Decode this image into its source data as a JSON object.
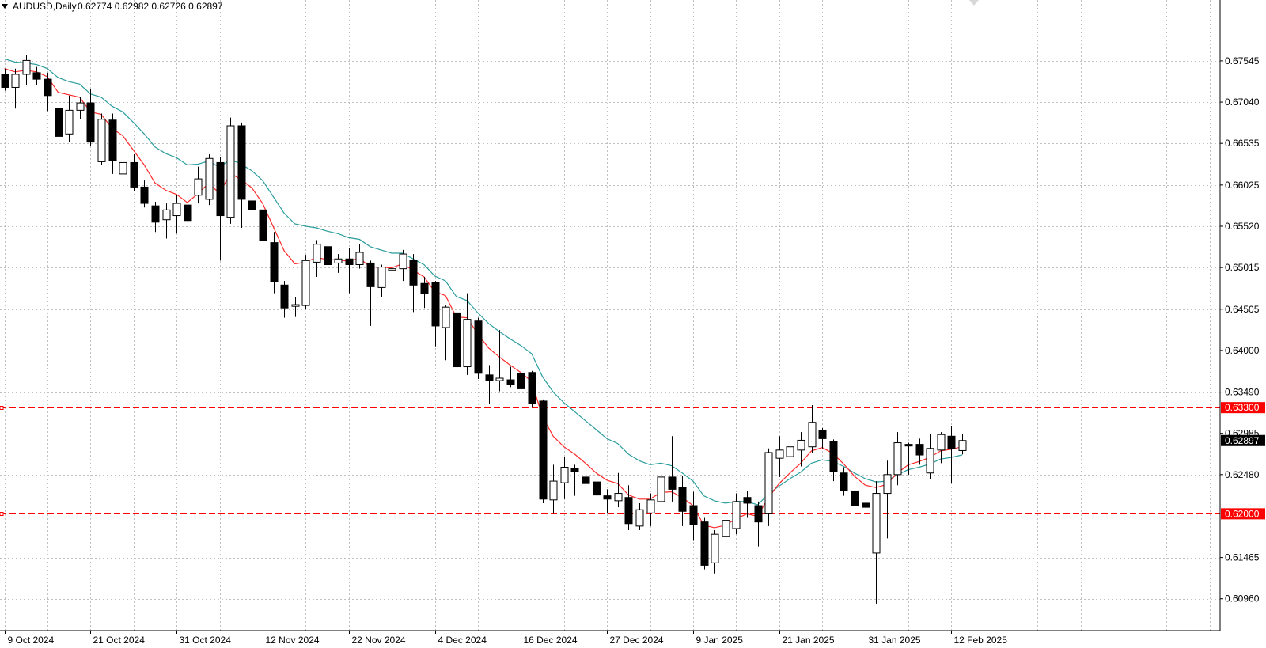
{
  "header": {
    "symbol_label": "AUDUSD,Daily",
    "ohlc": "0.62774 0.62982 0.62726 0.62897"
  },
  "chart_data": {
    "type": "candlestick",
    "symbol": "AUDUSD",
    "timeframe": "Daily",
    "ylim": [
      0.6057,
      0.6829
    ],
    "grid": true,
    "price_ticks": [
      "0.67545",
      "0.67040",
      "0.66535",
      "0.66025",
      "0.65520",
      "0.65015",
      "0.64505",
      "0.64000",
      "0.63490",
      "0.62985",
      "0.62480",
      "0.61465",
      "0.60960"
    ],
    "date_labels": [
      {
        "label": "9 Oct 2024",
        "index": 0
      },
      {
        "label": "21 Oct 2024",
        "index": 8
      },
      {
        "label": "31 Oct 2024",
        "index": 16
      },
      {
        "label": "12 Nov 2024",
        "index": 24
      },
      {
        "label": "22 Nov 2024",
        "index": 32
      },
      {
        "label": "4 Dec 2024",
        "index": 40
      },
      {
        "label": "16 Dec 2024",
        "index": 48
      },
      {
        "label": "27 Dec 2024",
        "index": 56
      },
      {
        "label": "9 Jan 2025",
        "index": 64
      },
      {
        "label": "21 Jan 2025",
        "index": 72
      },
      {
        "label": "31 Jan 2025",
        "index": 80
      },
      {
        "label": "12 Feb 2025",
        "index": 88
      }
    ],
    "horizontal_levels": [
      {
        "value": 0.633,
        "label": "0.63300",
        "color": "#ff0000"
      },
      {
        "value": 0.62,
        "label": "0.62000",
        "color": "#ff0000"
      }
    ],
    "current_price": {
      "value": 0.62897,
      "label": "0.62897"
    },
    "candles": [
      {
        "o": 0.6738,
        "h": 0.6745,
        "l": 0.6718,
        "c": 0.6722
      },
      {
        "o": 0.6722,
        "h": 0.6745,
        "l": 0.6696,
        "c": 0.6738
      },
      {
        "o": 0.6738,
        "h": 0.6762,
        "l": 0.6725,
        "c": 0.6755
      },
      {
        "o": 0.674,
        "h": 0.6747,
        "l": 0.6725,
        "c": 0.6732
      },
      {
        "o": 0.6732,
        "h": 0.674,
        "l": 0.6693,
        "c": 0.6712
      },
      {
        "o": 0.6696,
        "h": 0.6712,
        "l": 0.6654,
        "c": 0.6662
      },
      {
        "o": 0.6665,
        "h": 0.6712,
        "l": 0.6655,
        "c": 0.6694
      },
      {
        "o": 0.6694,
        "h": 0.671,
        "l": 0.6683,
        "c": 0.6703
      },
      {
        "o": 0.6703,
        "h": 0.672,
        "l": 0.665,
        "c": 0.6655
      },
      {
        "o": 0.6631,
        "h": 0.669,
        "l": 0.6627,
        "c": 0.6683
      },
      {
        "o": 0.6682,
        "h": 0.669,
        "l": 0.6616,
        "c": 0.6632
      },
      {
        "o": 0.6616,
        "h": 0.6655,
        "l": 0.6612,
        "c": 0.663
      },
      {
        "o": 0.663,
        "h": 0.664,
        "l": 0.6595,
        "c": 0.66
      },
      {
        "o": 0.66,
        "h": 0.6608,
        "l": 0.6575,
        "c": 0.658
      },
      {
        "o": 0.6577,
        "h": 0.6582,
        "l": 0.6545,
        "c": 0.6557
      },
      {
        "o": 0.656,
        "h": 0.658,
        "l": 0.6537,
        "c": 0.6572
      },
      {
        "o": 0.6565,
        "h": 0.659,
        "l": 0.6543,
        "c": 0.658
      },
      {
        "o": 0.6578,
        "h": 0.6585,
        "l": 0.6556,
        "c": 0.6559
      },
      {
        "o": 0.659,
        "h": 0.6625,
        "l": 0.658,
        "c": 0.661
      },
      {
        "o": 0.6585,
        "h": 0.664,
        "l": 0.6578,
        "c": 0.6635
      },
      {
        "o": 0.663,
        "h": 0.6637,
        "l": 0.651,
        "c": 0.6565
      },
      {
        "o": 0.6563,
        "h": 0.6685,
        "l": 0.6555,
        "c": 0.6675
      },
      {
        "o": 0.6675,
        "h": 0.6679,
        "l": 0.655,
        "c": 0.6585
      },
      {
        "o": 0.6583,
        "h": 0.6588,
        "l": 0.6555,
        "c": 0.6572
      },
      {
        "o": 0.6572,
        "h": 0.6575,
        "l": 0.6528,
        "c": 0.6535
      },
      {
        "o": 0.6532,
        "h": 0.6545,
        "l": 0.647,
        "c": 0.6484
      },
      {
        "o": 0.648,
        "h": 0.6485,
        "l": 0.644,
        "c": 0.6452
      },
      {
        "o": 0.6454,
        "h": 0.6465,
        "l": 0.6441,
        "c": 0.6456
      },
      {
        "o": 0.6455,
        "h": 0.6517,
        "l": 0.645,
        "c": 0.651
      },
      {
        "o": 0.6508,
        "h": 0.6535,
        "l": 0.649,
        "c": 0.653
      },
      {
        "o": 0.6527,
        "h": 0.6542,
        "l": 0.649,
        "c": 0.6505
      },
      {
        "o": 0.6507,
        "h": 0.6518,
        "l": 0.6495,
        "c": 0.6512
      },
      {
        "o": 0.6512,
        "h": 0.6525,
        "l": 0.647,
        "c": 0.6505
      },
      {
        "o": 0.6505,
        "h": 0.653,
        "l": 0.65,
        "c": 0.652
      },
      {
        "o": 0.6507,
        "h": 0.651,
        "l": 0.643,
        "c": 0.6478
      },
      {
        "o": 0.6477,
        "h": 0.6505,
        "l": 0.6465,
        "c": 0.6502
      },
      {
        "o": 0.6498,
        "h": 0.6507,
        "l": 0.648,
        "c": 0.65
      },
      {
        "o": 0.65,
        "h": 0.6523,
        "l": 0.6485,
        "c": 0.6518
      },
      {
        "o": 0.651,
        "h": 0.6518,
        "l": 0.6447,
        "c": 0.648
      },
      {
        "o": 0.6482,
        "h": 0.649,
        "l": 0.6452,
        "c": 0.647
      },
      {
        "o": 0.6483,
        "h": 0.6485,
        "l": 0.6405,
        "c": 0.643
      },
      {
        "o": 0.6428,
        "h": 0.6455,
        "l": 0.6388,
        "c": 0.6453
      },
      {
        "o": 0.6446,
        "h": 0.645,
        "l": 0.637,
        "c": 0.638
      },
      {
        "o": 0.638,
        "h": 0.647,
        "l": 0.637,
        "c": 0.6438
      },
      {
        "o": 0.6436,
        "h": 0.644,
        "l": 0.6365,
        "c": 0.6372
      },
      {
        "o": 0.637,
        "h": 0.6382,
        "l": 0.6335,
        "c": 0.6363
      },
      {
        "o": 0.6363,
        "h": 0.6425,
        "l": 0.635,
        "c": 0.6366
      },
      {
        "o": 0.6364,
        "h": 0.638,
        "l": 0.6355,
        "c": 0.6358
      },
      {
        "o": 0.6372,
        "h": 0.6385,
        "l": 0.6346,
        "c": 0.6353
      },
      {
        "o": 0.6373,
        "h": 0.6375,
        "l": 0.633,
        "c": 0.6335
      },
      {
        "o": 0.6338,
        "h": 0.634,
        "l": 0.6213,
        "c": 0.6218
      },
      {
        "o": 0.6217,
        "h": 0.626,
        "l": 0.62,
        "c": 0.624
      },
      {
        "o": 0.6238,
        "h": 0.627,
        "l": 0.6218,
        "c": 0.6257
      },
      {
        "o": 0.6256,
        "h": 0.626,
        "l": 0.6222,
        "c": 0.6252
      },
      {
        "o": 0.6245,
        "h": 0.6254,
        "l": 0.623,
        "c": 0.6237
      },
      {
        "o": 0.6239,
        "h": 0.6245,
        "l": 0.622,
        "c": 0.6223
      },
      {
        "o": 0.6222,
        "h": 0.623,
        "l": 0.62,
        "c": 0.6218
      },
      {
        "o": 0.6216,
        "h": 0.625,
        "l": 0.6208,
        "c": 0.6225
      },
      {
        "o": 0.622,
        "h": 0.6235,
        "l": 0.618,
        "c": 0.6188
      },
      {
        "o": 0.6185,
        "h": 0.6213,
        "l": 0.618,
        "c": 0.6205
      },
      {
        "o": 0.6201,
        "h": 0.6225,
        "l": 0.6185,
        "c": 0.6217
      },
      {
        "o": 0.6215,
        "h": 0.63,
        "l": 0.6205,
        "c": 0.6245
      },
      {
        "o": 0.6245,
        "h": 0.6295,
        "l": 0.6215,
        "c": 0.623
      },
      {
        "o": 0.6232,
        "h": 0.6246,
        "l": 0.6185,
        "c": 0.6203
      },
      {
        "o": 0.621,
        "h": 0.6227,
        "l": 0.6167,
        "c": 0.6187
      },
      {
        "o": 0.619,
        "h": 0.6195,
        "l": 0.6132,
        "c": 0.6137
      },
      {
        "o": 0.614,
        "h": 0.618,
        "l": 0.6127,
        "c": 0.6175
      },
      {
        "o": 0.6172,
        "h": 0.6205,
        "l": 0.6167,
        "c": 0.6192
      },
      {
        "o": 0.6182,
        "h": 0.6225,
        "l": 0.6175,
        "c": 0.6215
      },
      {
        "o": 0.622,
        "h": 0.6228,
        "l": 0.6195,
        "c": 0.6213
      },
      {
        "o": 0.621,
        "h": 0.6215,
        "l": 0.616,
        "c": 0.619
      },
      {
        "o": 0.62,
        "h": 0.628,
        "l": 0.6185,
        "c": 0.6275
      },
      {
        "o": 0.6268,
        "h": 0.6295,
        "l": 0.6245,
        "c": 0.6278
      },
      {
        "o": 0.627,
        "h": 0.6298,
        "l": 0.624,
        "c": 0.6282
      },
      {
        "o": 0.6278,
        "h": 0.63,
        "l": 0.6258,
        "c": 0.629
      },
      {
        "o": 0.6282,
        "h": 0.6333,
        "l": 0.6275,
        "c": 0.6312
      },
      {
        "o": 0.6302,
        "h": 0.6305,
        "l": 0.628,
        "c": 0.6292
      },
      {
        "o": 0.6288,
        "h": 0.6291,
        "l": 0.624,
        "c": 0.6252
      },
      {
        "o": 0.625,
        "h": 0.6257,
        "l": 0.6222,
        "c": 0.6228
      },
      {
        "o": 0.6228,
        "h": 0.6238,
        "l": 0.6205,
        "c": 0.621
      },
      {
        "o": 0.6213,
        "h": 0.6265,
        "l": 0.62,
        "c": 0.6208
      },
      {
        "o": 0.6152,
        "h": 0.624,
        "l": 0.609,
        "c": 0.6225
      },
      {
        "o": 0.6225,
        "h": 0.6265,
        "l": 0.617,
        "c": 0.6248
      },
      {
        "o": 0.6248,
        "h": 0.63,
        "l": 0.6235,
        "c": 0.6287
      },
      {
        "o": 0.6285,
        "h": 0.6287,
        "l": 0.6248,
        "c": 0.6283
      },
      {
        "o": 0.6285,
        "h": 0.6292,
        "l": 0.626,
        "c": 0.6272
      },
      {
        "o": 0.625,
        "h": 0.6298,
        "l": 0.6243,
        "c": 0.628
      },
      {
        "o": 0.6278,
        "h": 0.63,
        "l": 0.6262,
        "c": 0.6297
      },
      {
        "o": 0.6295,
        "h": 0.6307,
        "l": 0.6237,
        "c": 0.628
      },
      {
        "o": 0.62774,
        "h": 0.62982,
        "l": 0.62726,
        "c": 0.62897
      }
    ],
    "ema_fast": [
      0.6745,
      0.6741,
      0.6743,
      0.6741,
      0.6735,
      0.6716,
      0.6713,
      0.671,
      0.6692,
      0.6689,
      0.6672,
      0.6663,
      0.6645,
      0.6627,
      0.6605,
      0.6596,
      0.6591,
      0.6581,
      0.6592,
      0.6605,
      0.6592,
      0.6617,
      0.6609,
      0.6599,
      0.658,
      0.6551,
      0.6522,
      0.6506,
      0.6508,
      0.6514,
      0.6511,
      0.6511,
      0.6509,
      0.6513,
      0.6502,
      0.6502,
      0.6501,
      0.6506,
      0.6498,
      0.649,
      0.6472,
      0.6467,
      0.6441,
      0.644,
      0.642,
      0.6403,
      0.6392,
      0.6382,
      0.6373,
      0.6362,
      0.6319,
      0.6295,
      0.6282,
      0.6273,
      0.6262,
      0.625,
      0.6241,
      0.6237,
      0.6223,
      0.6218,
      0.6218,
      0.6226,
      0.6227,
      0.622,
      0.621,
      0.6186,
      0.6183,
      0.6186,
      0.6194,
      0.62,
      0.6197,
      0.622,
      0.6237,
      0.625,
      0.6262,
      0.6277,
      0.6281,
      0.6274,
      0.6261,
      0.6246,
      0.6235,
      0.6232,
      0.6236,
      0.625,
      0.626,
      0.6264,
      0.6269,
      0.6277,
      0.6279,
      0.6282
    ],
    "ema_slow": [
      0.6757,
      0.6753,
      0.6752,
      0.675,
      0.6745,
      0.6734,
      0.6729,
      0.6726,
      0.6714,
      0.671,
      0.6699,
      0.6692,
      0.6679,
      0.6665,
      0.6649,
      0.6641,
      0.6636,
      0.6627,
      0.6628,
      0.6632,
      0.6624,
      0.6634,
      0.6628,
      0.662,
      0.6608,
      0.6588,
      0.6568,
      0.6555,
      0.6552,
      0.655,
      0.6546,
      0.6543,
      0.6538,
      0.6536,
      0.6527,
      0.6523,
      0.6519,
      0.6519,
      0.6512,
      0.6505,
      0.6491,
      0.6485,
      0.6466,
      0.6461,
      0.6446,
      0.6433,
      0.6423,
      0.6414,
      0.6406,
      0.6396,
      0.6368,
      0.6349,
      0.6336,
      0.6325,
      0.6314,
      0.6303,
      0.6292,
      0.6286,
      0.6273,
      0.6265,
      0.626,
      0.6262,
      0.6259,
      0.625,
      0.624,
      0.6222,
      0.6216,
      0.6213,
      0.6215,
      0.6215,
      0.6211,
      0.6224,
      0.6234,
      0.6243,
      0.6251,
      0.6262,
      0.6266,
      0.6264,
      0.6258,
      0.625,
      0.6243,
      0.6239,
      0.624,
      0.6248,
      0.6254,
      0.6257,
      0.6261,
      0.6267,
      0.6269,
      0.6272
    ],
    "colors": {
      "ema_fast": "#ff2a2a",
      "ema_slow": "#2a9d9d",
      "level_line": "#ff0000",
      "level_badge": "#ff0000",
      "price_badge": "#000000",
      "grid": "#c0c0c0",
      "bull_fill": "#ffffff",
      "bear_fill": "#000000",
      "axis": "#000000"
    }
  }
}
